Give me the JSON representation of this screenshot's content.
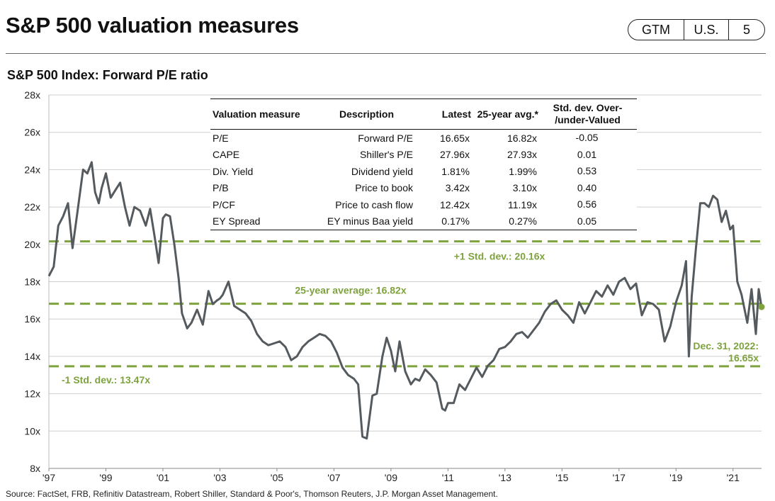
{
  "header": {
    "title": "S&P 500 valuation measures",
    "badge": [
      "GTM",
      "U.S.",
      "5"
    ]
  },
  "chart_data": {
    "type": "line",
    "title": "S&P 500 Index: Forward P/E ratio",
    "xlabel": "",
    "ylabel": "",
    "xlim": [
      1997.0,
      2022.0
    ],
    "ylim": [
      8,
      28
    ],
    "y_ticks": [
      8,
      10,
      12,
      14,
      16,
      18,
      20,
      22,
      24,
      26,
      28
    ],
    "y_tick_labels": [
      "8x",
      "10x",
      "12x",
      "14x",
      "16x",
      "18x",
      "20x",
      "22x",
      "24x",
      "26x",
      "28x"
    ],
    "x_ticks": [
      1997,
      1999,
      2001,
      2003,
      2005,
      2007,
      2009,
      2011,
      2013,
      2015,
      2017,
      2019,
      2021
    ],
    "x_tick_labels": [
      "'97",
      "'99",
      "'01",
      "'03",
      "'05",
      "'07",
      "'09",
      "'11",
      "'13",
      "'15",
      "'17",
      "'19",
      "'21"
    ],
    "series": [
      {
        "name": "Forward P/E",
        "color": "#555a5e",
        "x": [
          1997.0,
          1997.17,
          1997.33,
          1997.5,
          1997.67,
          1997.83,
          1998.0,
          1998.2,
          1998.35,
          1998.5,
          1998.62,
          1998.75,
          1998.85,
          1999.0,
          1999.17,
          1999.33,
          1999.5,
          1999.67,
          1999.83,
          2000.0,
          2000.2,
          2000.4,
          2000.55,
          2000.7,
          2000.85,
          2001.0,
          2001.1,
          2001.25,
          2001.4,
          2001.55,
          2001.67,
          2001.85,
          2002.0,
          2002.2,
          2002.4,
          2002.6,
          2002.75,
          2002.9,
          2003.0,
          2003.1,
          2003.3,
          2003.5,
          2003.7,
          2003.9,
          2004.1,
          2004.3,
          2004.5,
          2004.7,
          2004.9,
          2005.1,
          2005.3,
          2005.5,
          2005.7,
          2005.9,
          2006.1,
          2006.3,
          2006.5,
          2006.7,
          2006.9,
          2007.1,
          2007.3,
          2007.5,
          2007.7,
          2007.85,
          2008.0,
          2008.15,
          2008.35,
          2008.5,
          2008.7,
          2008.85,
          2009.0,
          2009.15,
          2009.3,
          2009.5,
          2009.7,
          2009.85,
          2010.0,
          2010.2,
          2010.4,
          2010.6,
          2010.8,
          2010.9,
          2011.0,
          2011.2,
          2011.4,
          2011.6,
          2011.8,
          2012.0,
          2012.2,
          2012.4,
          2012.6,
          2012.8,
          2013.0,
          2013.2,
          2013.4,
          2013.6,
          2013.8,
          2014.0,
          2014.2,
          2014.4,
          2014.6,
          2014.8,
          2015.0,
          2015.2,
          2015.4,
          2015.6,
          2015.8,
          2016.0,
          2016.2,
          2016.4,
          2016.6,
          2016.8,
          2017.0,
          2017.2,
          2017.4,
          2017.6,
          2017.8,
          2018.0,
          2018.2,
          2018.4,
          2018.6,
          2018.8,
          2019.0,
          2019.2,
          2019.35,
          2019.45,
          2019.55,
          2019.7,
          2019.85,
          2020.0,
          2020.15,
          2020.3,
          2020.45,
          2020.6,
          2020.75,
          2020.9,
          2021.0,
          2021.15,
          2021.3,
          2021.5,
          2021.65,
          2021.8,
          2021.9,
          2022.0
        ],
        "values": [
          18.3,
          18.8,
          21.0,
          21.5,
          22.2,
          19.8,
          21.7,
          24.0,
          23.8,
          24.4,
          22.8,
          22.2,
          23.0,
          23.8,
          22.5,
          22.9,
          23.3,
          22.0,
          21.0,
          22.0,
          21.8,
          21.0,
          21.9,
          20.5,
          19.0,
          21.4,
          21.6,
          21.5,
          20.0,
          18.2,
          16.3,
          15.5,
          15.8,
          16.5,
          15.7,
          17.5,
          16.8,
          17.0,
          17.1,
          17.3,
          18.0,
          16.7,
          16.5,
          16.3,
          15.9,
          15.2,
          14.8,
          14.6,
          14.7,
          14.8,
          14.5,
          13.8,
          14.0,
          14.5,
          14.8,
          15.0,
          15.2,
          15.1,
          14.8,
          14.2,
          13.4,
          13.0,
          12.8,
          12.5,
          9.7,
          9.6,
          11.9,
          12.0,
          14.0,
          15.0,
          14.3,
          13.2,
          14.8,
          13.2,
          12.5,
          12.8,
          12.7,
          13.3,
          13.0,
          12.6,
          11.2,
          11.1,
          11.5,
          11.5,
          12.5,
          12.2,
          12.8,
          13.4,
          12.9,
          13.5,
          13.8,
          14.4,
          14.5,
          14.8,
          15.2,
          15.3,
          15.0,
          15.4,
          15.8,
          16.4,
          16.8,
          17.0,
          16.5,
          16.2,
          15.8,
          16.9,
          16.3,
          16.9,
          17.5,
          17.2,
          17.8,
          17.3,
          18.0,
          18.2,
          17.6,
          17.9,
          16.2,
          16.9,
          16.8,
          16.5,
          14.8,
          15.6,
          16.9,
          17.8,
          19.1,
          14.0,
          17.2,
          19.8,
          22.2,
          22.2,
          22.0,
          22.6,
          22.4,
          21.2,
          21.8,
          20.8,
          21.0,
          18.0,
          17.3,
          15.8,
          17.6,
          15.2,
          17.6,
          16.65
        ]
      }
    ],
    "reference_lines": [
      {
        "name": "+1 Std. dev.",
        "value": 20.16,
        "label": "+1 Std. dev.: 20.16x"
      },
      {
        "name": "25-year average",
        "value": 16.82,
        "label": "25-year average: 16.82x"
      },
      {
        "name": "-1 Std. dev.",
        "value": 13.47,
        "label": "-1 Std. dev.: 13.47x"
      }
    ],
    "end_point": {
      "x": 2022.0,
      "value": 16.65,
      "label_line1": "Dec. 31, 2022:",
      "label_line2": "16.65x"
    }
  },
  "colors": {
    "line": "#555a5e",
    "accent": "#7ea23e",
    "grid": "#cfcfcf"
  },
  "valuation_table": {
    "headers": [
      "Valuation measure",
      "Description",
      "Latest",
      "25-year avg.*",
      "Std. dev. Over-",
      "/under-Valued"
    ],
    "rows": [
      [
        "P/E",
        "Forward P/E",
        "16.65x",
        "16.82x",
        "-0.05"
      ],
      [
        "CAPE",
        "Shiller's P/E",
        "27.96x",
        "27.93x",
        "0.01"
      ],
      [
        "Div. Yield",
        "Dividend yield",
        "1.81%",
        "1.99%",
        "0.53"
      ],
      [
        "P/B",
        "Price to book",
        "3.42x",
        "3.10x",
        "0.40"
      ],
      [
        "P/CF",
        "Price to cash flow",
        "12.42x",
        "11.19x",
        "0.56"
      ],
      [
        "EY Spread",
        "EY minus Baa yield",
        "0.17%",
        "0.27%",
        "0.05"
      ]
    ]
  },
  "source": "Source: FactSet, FRB, Refinitiv Datastream, Robert Shiller, Standard & Poor's, Thomson Reuters, J.P. Morgan Asset Management."
}
